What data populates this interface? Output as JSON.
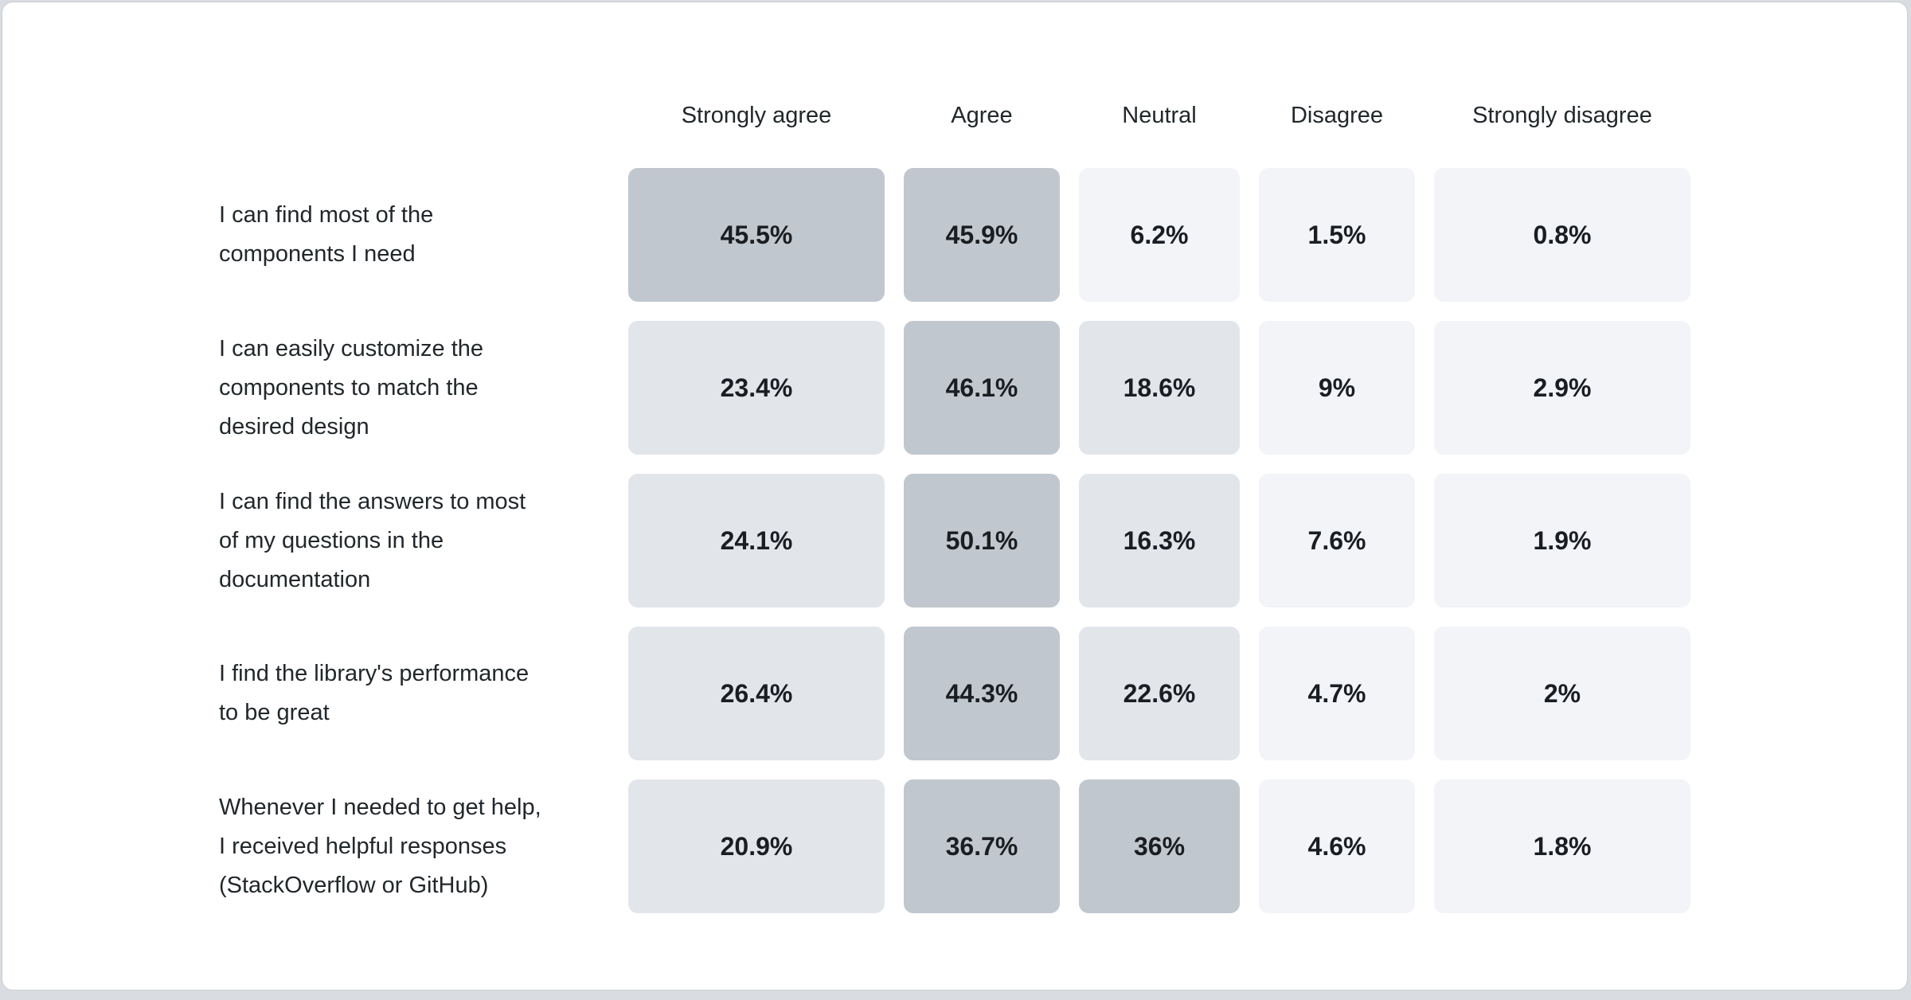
{
  "page": {
    "background_color": "#d9dde2",
    "card": {
      "background_color": "#ffffff",
      "border_color": "#c9ced4"
    }
  },
  "chart_data": {
    "type": "heatmap",
    "title": "",
    "legend": "none",
    "grid": "off",
    "value_unit": "%",
    "columns": [
      "Strongly agree",
      "Agree",
      "Neutral",
      "Disagree",
      "Strongly disagree"
    ],
    "rows": [
      {
        "label": "I can find most of the components I need",
        "label_lines": [
          "I can find most of the",
          "components I need"
        ],
        "values": [
          45.5,
          45.9,
          6.2,
          1.5,
          0.8
        ],
        "display": [
          "45.5%",
          "45.9%",
          "6.2%",
          "1.5%",
          "0.8%"
        ]
      },
      {
        "label": "I can easily customize the components to match the desired design",
        "label_lines": [
          "I can easily customize the",
          "components to match the",
          "desired design"
        ],
        "values": [
          23.4,
          46.1,
          18.6,
          9,
          2.9
        ],
        "display": [
          "23.4%",
          "46.1%",
          "18.6%",
          "9%",
          "2.9%"
        ]
      },
      {
        "label": "I can find the answers to most of my questions in the documentation",
        "label_lines": [
          "I can find the answers to most",
          "of my questions in the",
          "documentation"
        ],
        "values": [
          24.1,
          50.1,
          16.3,
          7.6,
          1.9
        ],
        "display": [
          "24.1%",
          "50.1%",
          "16.3%",
          "7.6%",
          "1.9%"
        ]
      },
      {
        "label": "I find the library's performance to be great",
        "label_lines": [
          "I find the library's performance",
          "to be great"
        ],
        "values": [
          26.4,
          44.3,
          22.6,
          4.7,
          2
        ],
        "display": [
          "26.4%",
          "44.3%",
          "22.6%",
          "4.7%",
          "2%"
        ]
      },
      {
        "label": "Whenever I needed to get help, I received helpful responses (StackOverflow or GitHub)",
        "label_lines": [
          "Whenever I needed to get help,",
          "I received helpful responses",
          "(StackOverflow or GitHub)"
        ],
        "values": [
          20.9,
          36.7,
          36,
          4.6,
          1.8
        ],
        "display": [
          "20.9%",
          "36.7%",
          "36%",
          "4.6%",
          "1.8%"
        ]
      }
    ],
    "color_scale": {
      "low_color": "#f2f4f8",
      "mid_color": "#e2e5ea",
      "high_color": "#c1c7ce",
      "thresholds_pct": [
        10,
        30
      ]
    }
  }
}
